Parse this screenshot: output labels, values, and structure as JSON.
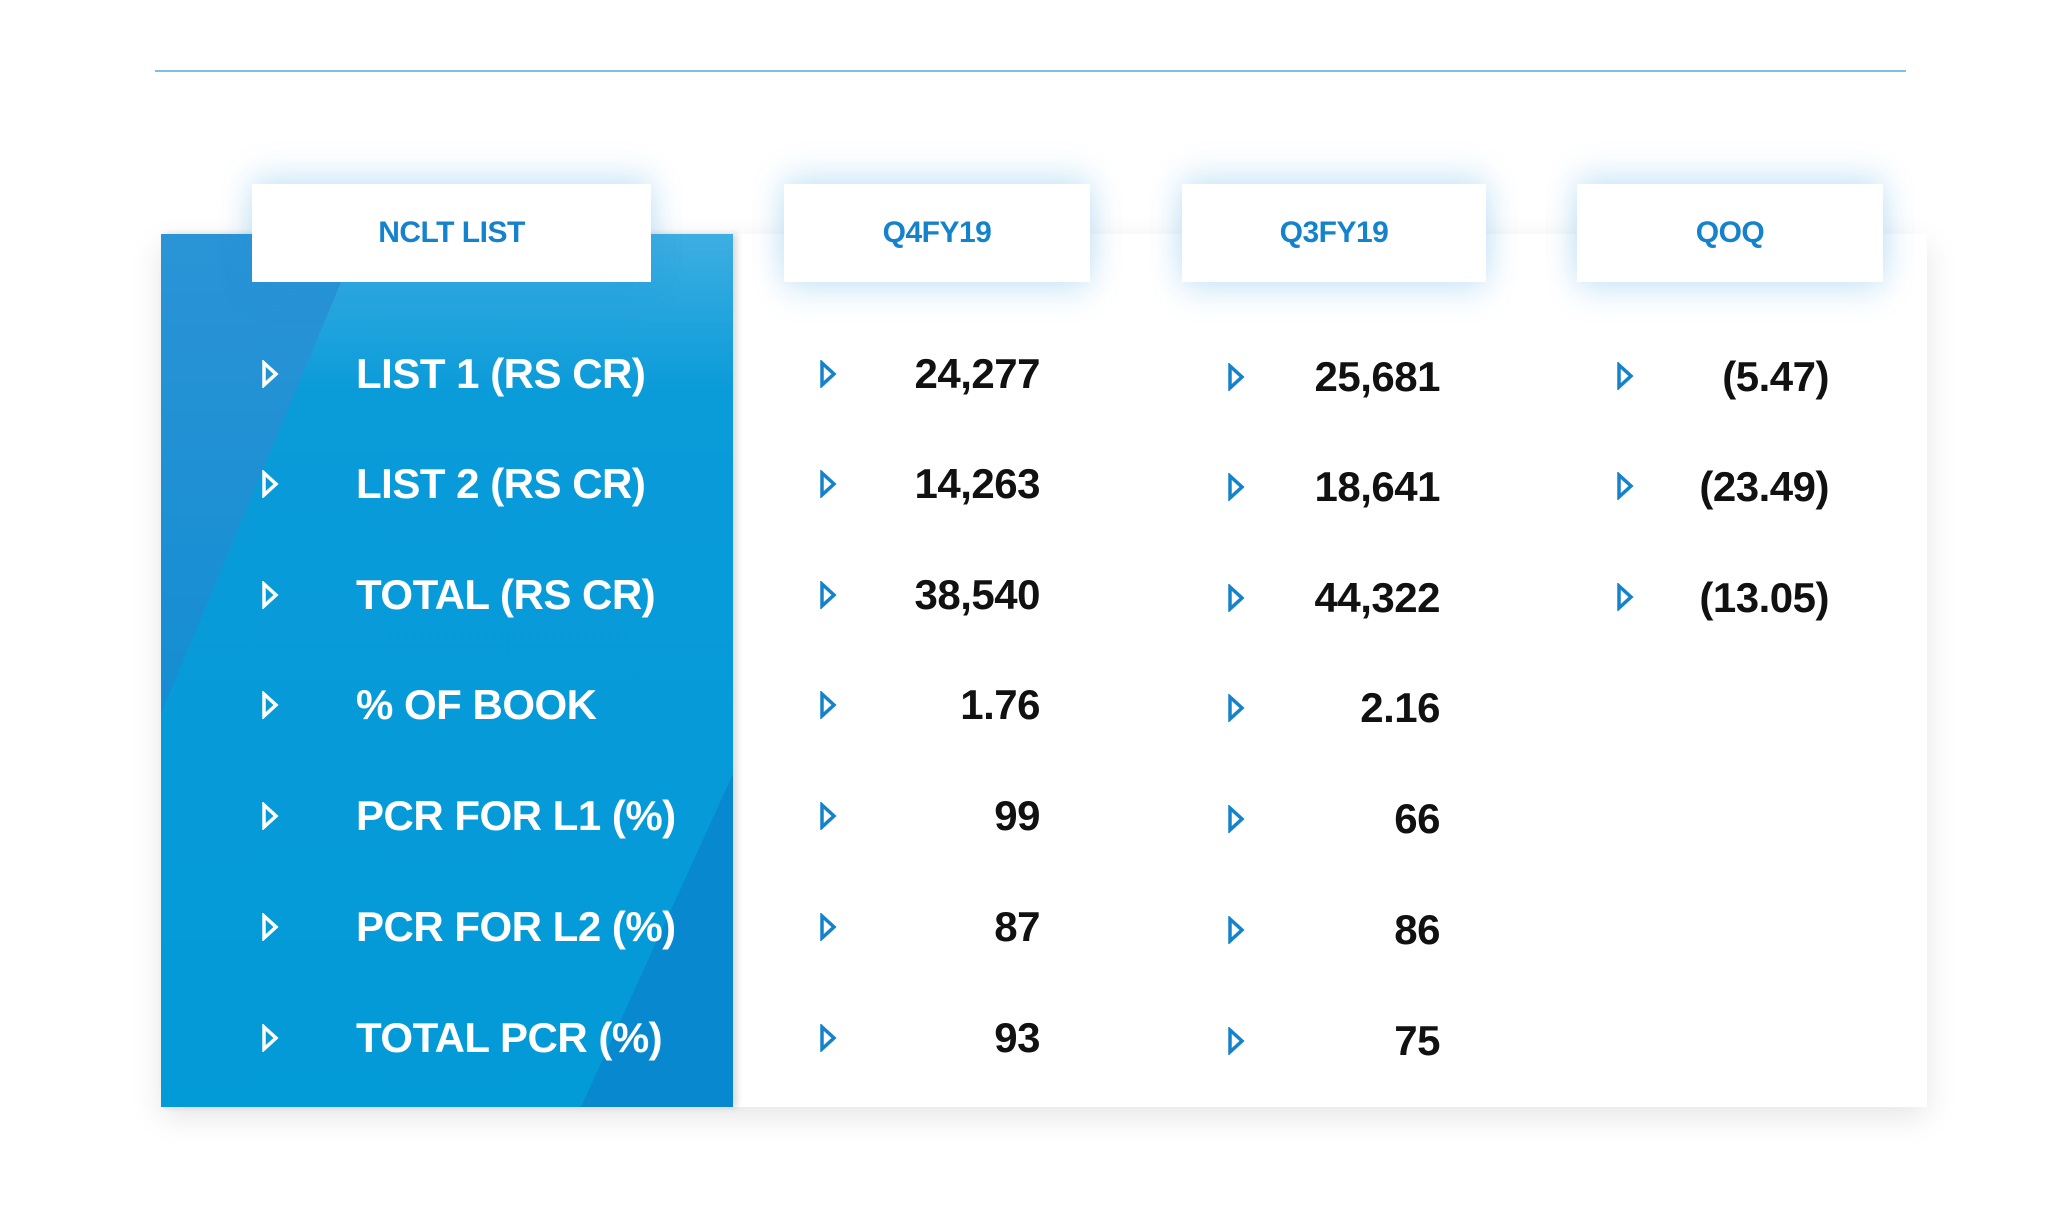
{
  "colors": {
    "accent": "#1582cc",
    "panel_blue": "#039ad8",
    "value_text": "#111111"
  },
  "headers": {
    "label": "NCLT LIST",
    "col1": "Q4FY19",
    "col2": "Q3FY19",
    "col3": "QOQ"
  },
  "rows": [
    {
      "label": "LIST 1 (RS CR)",
      "q4fy19": "24,277",
      "q3fy19": "25,681",
      "qoq": "(5.47)"
    },
    {
      "label": "LIST 2 (RS CR)",
      "q4fy19": "14,263",
      "q3fy19": "18,641",
      "qoq": "(23.49)"
    },
    {
      "label": "TOTAL (RS CR)",
      "q4fy19": "38,540",
      "q3fy19": "44,322",
      "qoq": "(13.05)"
    },
    {
      "label": "% OF BOOK",
      "q4fy19": "1.76",
      "q3fy19": "2.16",
      "qoq": ""
    },
    {
      "label": "PCR FOR L1 (%)",
      "q4fy19": "99",
      "q3fy19": "66",
      "qoq": ""
    },
    {
      "label": "PCR FOR L2 (%)",
      "q4fy19": "87",
      "q3fy19": "86",
      "qoq": ""
    },
    {
      "label": "TOTAL PCR (%)",
      "q4fy19": "93",
      "q3fy19": "75",
      "qoq": ""
    }
  ]
}
